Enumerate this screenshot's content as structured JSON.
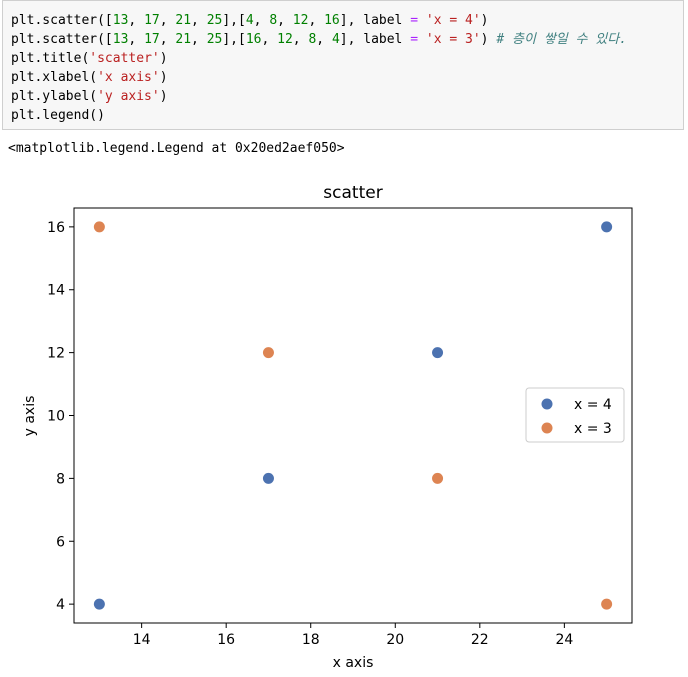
{
  "code_cell": {
    "lines": [
      [
        {
          "t": "plt.scatter([",
          "c": ""
        },
        {
          "t": "13",
          "c": "num"
        },
        {
          "t": ", ",
          "c": ""
        },
        {
          "t": "17",
          "c": "num"
        },
        {
          "t": ", ",
          "c": ""
        },
        {
          "t": "21",
          "c": "num"
        },
        {
          "t": ", ",
          "c": ""
        },
        {
          "t": "25",
          "c": "num"
        },
        {
          "t": "],[",
          "c": ""
        },
        {
          "t": "4",
          "c": "num"
        },
        {
          "t": ", ",
          "c": ""
        },
        {
          "t": "8",
          "c": "num"
        },
        {
          "t": ", ",
          "c": ""
        },
        {
          "t": "12",
          "c": "num"
        },
        {
          "t": ", ",
          "c": ""
        },
        {
          "t": "16",
          "c": "num"
        },
        {
          "t": "], label ",
          "c": ""
        },
        {
          "t": "=",
          "c": "op"
        },
        {
          "t": " ",
          "c": ""
        },
        {
          "t": "'x = 4'",
          "c": "str"
        },
        {
          "t": ")",
          "c": ""
        }
      ],
      [
        {
          "t": "plt.scatter([",
          "c": ""
        },
        {
          "t": "13",
          "c": "num"
        },
        {
          "t": ", ",
          "c": ""
        },
        {
          "t": "17",
          "c": "num"
        },
        {
          "t": ", ",
          "c": ""
        },
        {
          "t": "21",
          "c": "num"
        },
        {
          "t": ", ",
          "c": ""
        },
        {
          "t": "25",
          "c": "num"
        },
        {
          "t": "],[",
          "c": ""
        },
        {
          "t": "16",
          "c": "num"
        },
        {
          "t": ", ",
          "c": ""
        },
        {
          "t": "12",
          "c": "num"
        },
        {
          "t": ", ",
          "c": ""
        },
        {
          "t": "8",
          "c": "num"
        },
        {
          "t": ", ",
          "c": ""
        },
        {
          "t": "4",
          "c": "num"
        },
        {
          "t": "], label ",
          "c": ""
        },
        {
          "t": "=",
          "c": "op"
        },
        {
          "t": " ",
          "c": ""
        },
        {
          "t": "'x = 3'",
          "c": "str"
        },
        {
          "t": ") ",
          "c": ""
        },
        {
          "t": "# 층이 쌓일 수 있다.",
          "c": "com"
        }
      ],
      [
        {
          "t": "plt.title(",
          "c": ""
        },
        {
          "t": "'scatter'",
          "c": "str"
        },
        {
          "t": ")",
          "c": ""
        }
      ],
      [
        {
          "t": "plt.xlabel(",
          "c": ""
        },
        {
          "t": "'x axis'",
          "c": "str"
        },
        {
          "t": ")",
          "c": ""
        }
      ],
      [
        {
          "t": "plt.ylabel(",
          "c": ""
        },
        {
          "t": "'y axis'",
          "c": "str"
        },
        {
          "t": ")",
          "c": ""
        }
      ],
      [
        {
          "t": "plt.legend()",
          "c": ""
        }
      ]
    ]
  },
  "output": {
    "text": "<matplotlib.legend.Legend at 0x20ed2aef050>"
  },
  "chart_data": {
    "type": "scatter",
    "title": "scatter",
    "xlabel": "x axis",
    "ylabel": "y axis",
    "xlim": [
      12.4,
      25.6
    ],
    "ylim": [
      3.4,
      16.6
    ],
    "xticks": [
      14,
      16,
      18,
      20,
      22,
      24
    ],
    "yticks": [
      4,
      6,
      8,
      10,
      12,
      14,
      16
    ],
    "grid": false,
    "legend_position": "center-right",
    "series": [
      {
        "name": "x = 4",
        "color": "#4c72b0",
        "x": [
          13,
          17,
          21,
          25
        ],
        "y": [
          4,
          8,
          12,
          16
        ]
      },
      {
        "name": "x = 3",
        "color": "#dd8452",
        "x": [
          13,
          17,
          21,
          25
        ],
        "y": [
          16,
          12,
          8,
          4
        ]
      }
    ]
  }
}
